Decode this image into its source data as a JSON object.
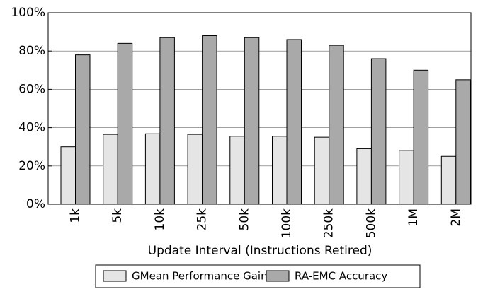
{
  "chart_data": {
    "type": "bar",
    "x_label": "Update Interval (Instructions Retired)",
    "categories": [
      "1k",
      "5k",
      "10k",
      "25k",
      "50k",
      "100k",
      "250k",
      "500k",
      "1M",
      "2M"
    ],
    "series": [
      {
        "name": "GMean Performance Gain",
        "color": "#e5e5e5",
        "values": [
          30,
          36.5,
          36.8,
          36.5,
          35.5,
          35.5,
          35,
          29,
          28,
          25
        ]
      },
      {
        "name": "RA-EMC Accuracy",
        "color": "#a9a9a9",
        "values": [
          78,
          84,
          87,
          88,
          87,
          86,
          83,
          76,
          70,
          65
        ]
      }
    ],
    "ylim": [
      0,
      100
    ],
    "yticks": [
      {
        "value": 0,
        "label": "0%"
      },
      {
        "value": 20,
        "label": "20%"
      },
      {
        "value": 40,
        "label": "40%"
      },
      {
        "value": 60,
        "label": "60%"
      },
      {
        "value": 80,
        "label": "80%"
      },
      {
        "value": 100,
        "label": "100%"
      }
    ],
    "grid": true,
    "legend": "bottom"
  }
}
